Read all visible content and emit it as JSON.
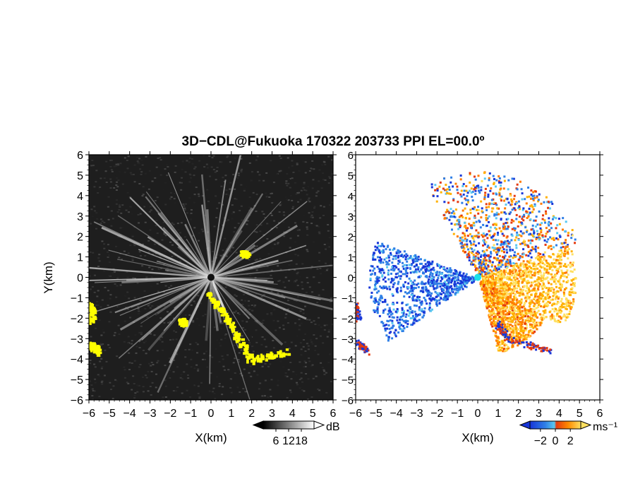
{
  "title": "3D−CDL@Fukuoka 170322 203733 PPI EL=00.0º",
  "chart_data": [
    {
      "type": "heatmap",
      "name": "reflectivity",
      "xlabel": "X(km)",
      "ylabel": "Y(km)",
      "xlim": [
        -6,
        6
      ],
      "ylim": [
        -6,
        6
      ],
      "x_ticks": [
        -6,
        -5,
        -4,
        -3,
        -2,
        -1,
        0,
        1,
        2,
        3,
        4,
        5,
        6
      ],
      "y_ticks": [
        -6,
        -5,
        -4,
        -3,
        -2,
        -1,
        0,
        1,
        2,
        3,
        4,
        5,
        6
      ],
      "colorbar": {
        "ticks": [
          6,
          12,
          18
        ],
        "unit": "dB",
        "colormap": "grayscale"
      },
      "highlight_color": "#ffff00",
      "background_color": "#1e1e1e"
    },
    {
      "type": "heatmap",
      "name": "radial-velocity",
      "xlabel": "X(km)",
      "ylabel": "",
      "xlim": [
        -6,
        6
      ],
      "ylim": [
        -6,
        6
      ],
      "x_ticks": [
        -6,
        -5,
        -4,
        -3,
        -2,
        -1,
        0,
        1,
        2,
        3,
        4,
        5,
        6
      ],
      "y_ticks": [
        -6,
        -5,
        -4,
        -3,
        -2,
        -1,
        0,
        1,
        2,
        3,
        4,
        5,
        6
      ],
      "colorbar": {
        "ticks": [
          -2,
          0,
          2
        ],
        "unit": "ms⁻¹",
        "colormap": "blue-cyan-red-orange-yellow"
      },
      "background_color": "#ffffff"
    }
  ]
}
